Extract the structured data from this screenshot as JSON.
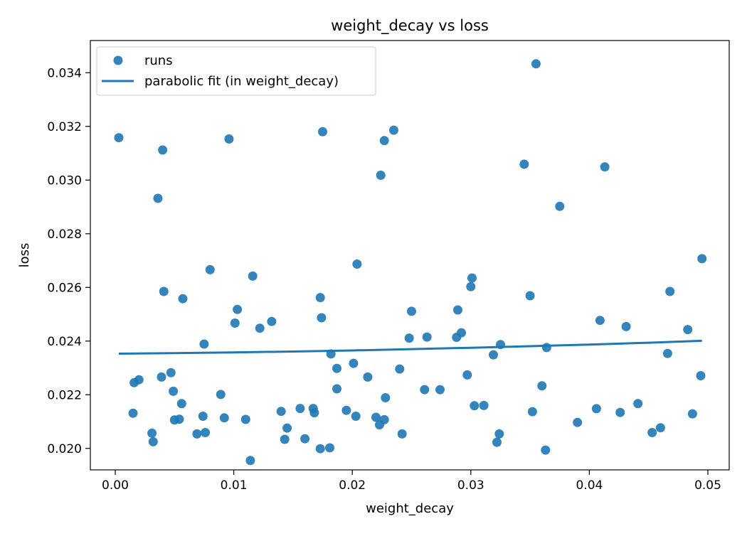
{
  "chart_data": {
    "type": "scatter",
    "title": "weight_decay vs loss",
    "xlabel": "weight_decay",
    "ylabel": "loss",
    "xlim": [
      -0.0021,
      0.0518
    ],
    "ylim": [
      0.0192,
      0.0352
    ],
    "x_ticks": [
      0.0,
      0.01,
      0.02,
      0.03,
      0.04,
      0.05
    ],
    "x_tick_labels": [
      "0.00",
      "0.01",
      "0.02",
      "0.03",
      "0.04",
      "0.05"
    ],
    "y_ticks": [
      0.02,
      0.022,
      0.024,
      0.026,
      0.028,
      0.03,
      0.032,
      0.034
    ],
    "y_tick_labels": [
      "0.020",
      "0.022",
      "0.024",
      "0.026",
      "0.028",
      "0.030",
      "0.032",
      "0.034"
    ],
    "grid": false,
    "legend": {
      "position": "top-left",
      "entries": [
        "runs",
        "parabolic fit (in weight_decay)"
      ]
    },
    "colors": {
      "points": "#1f77b4",
      "fit": "#1f77b4"
    },
    "series": [
      {
        "name": "runs",
        "kind": "scatter",
        "points": [
          [
            0.0003,
            0.03158
          ],
          [
            0.0015,
            0.02131
          ],
          [
            0.0016,
            0.02245
          ],
          [
            0.002,
            0.02256
          ],
          [
            0.0031,
            0.02057
          ],
          [
            0.0032,
            0.02025
          ],
          [
            0.0036,
            0.02932
          ],
          [
            0.0039,
            0.02266
          ],
          [
            0.004,
            0.03112
          ],
          [
            0.0041,
            0.02585
          ],
          [
            0.0047,
            0.02282
          ],
          [
            0.0049,
            0.02213
          ],
          [
            0.005,
            0.02106
          ],
          [
            0.0054,
            0.02109
          ],
          [
            0.0056,
            0.02167
          ],
          [
            0.0057,
            0.02558
          ],
          [
            0.0069,
            0.02054
          ],
          [
            0.0074,
            0.0212
          ],
          [
            0.0075,
            0.02389
          ],
          [
            0.0076,
            0.02059
          ],
          [
            0.008,
            0.02666
          ],
          [
            0.0089,
            0.02201
          ],
          [
            0.0092,
            0.02114
          ],
          [
            0.0096,
            0.03153
          ],
          [
            0.0101,
            0.02467
          ],
          [
            0.0103,
            0.02518
          ],
          [
            0.011,
            0.02108
          ],
          [
            0.0114,
            0.01955
          ],
          [
            0.0116,
            0.02642
          ],
          [
            0.0122,
            0.02448
          ],
          [
            0.0132,
            0.02473
          ],
          [
            0.014,
            0.02138
          ],
          [
            0.0143,
            0.02034
          ],
          [
            0.0145,
            0.02076
          ],
          [
            0.0156,
            0.02149
          ],
          [
            0.016,
            0.02036
          ],
          [
            0.0167,
            0.02149
          ],
          [
            0.0168,
            0.02133
          ],
          [
            0.0173,
            0.01999
          ],
          [
            0.0173,
            0.02562
          ],
          [
            0.0174,
            0.02487
          ],
          [
            0.0175,
            0.0318
          ],
          [
            0.0181,
            0.02002
          ],
          [
            0.0182,
            0.02352
          ],
          [
            0.0187,
            0.02298
          ],
          [
            0.0187,
            0.02222
          ],
          [
            0.0195,
            0.02142
          ],
          [
            0.0201,
            0.02317
          ],
          [
            0.0203,
            0.0212
          ],
          [
            0.0204,
            0.02687
          ],
          [
            0.0213,
            0.02266
          ],
          [
            0.022,
            0.02116
          ],
          [
            0.0223,
            0.02088
          ],
          [
            0.0224,
            0.03018
          ],
          [
            0.0227,
            0.03147
          ],
          [
            0.0227,
            0.02107
          ],
          [
            0.0228,
            0.02189
          ],
          [
            0.0235,
            0.03186
          ],
          [
            0.024,
            0.02296
          ],
          [
            0.0242,
            0.02054
          ],
          [
            0.0248,
            0.02411
          ],
          [
            0.025,
            0.02511
          ],
          [
            0.0261,
            0.02219
          ],
          [
            0.0263,
            0.02415
          ],
          [
            0.0274,
            0.02219
          ],
          [
            0.0288,
            0.02414
          ],
          [
            0.0289,
            0.02516
          ],
          [
            0.0292,
            0.02431
          ],
          [
            0.0297,
            0.02274
          ],
          [
            0.03,
            0.02603
          ],
          [
            0.0301,
            0.02635
          ],
          [
            0.0303,
            0.02159
          ],
          [
            0.0311,
            0.0216
          ],
          [
            0.0319,
            0.02349
          ],
          [
            0.0322,
            0.02023
          ],
          [
            0.0324,
            0.02054
          ],
          [
            0.0325,
            0.02387
          ],
          [
            0.0345,
            0.03059
          ],
          [
            0.035,
            0.02569
          ],
          [
            0.0352,
            0.02137
          ],
          [
            0.0355,
            0.03433
          ],
          [
            0.036,
            0.02233
          ],
          [
            0.0363,
            0.01994
          ],
          [
            0.0364,
            0.02376
          ],
          [
            0.0375,
            0.02902
          ],
          [
            0.039,
            0.02097
          ],
          [
            0.0406,
            0.02148
          ],
          [
            0.0409,
            0.02477
          ],
          [
            0.0413,
            0.03049
          ],
          [
            0.0426,
            0.02134
          ],
          [
            0.0431,
            0.02454
          ],
          [
            0.0441,
            0.02167
          ],
          [
            0.0453,
            0.02059
          ],
          [
            0.046,
            0.02077
          ],
          [
            0.0466,
            0.02354
          ],
          [
            0.0468,
            0.02585
          ],
          [
            0.0483,
            0.02443
          ],
          [
            0.0487,
            0.02129
          ],
          [
            0.0494,
            0.02271
          ],
          [
            0.0495,
            0.02707
          ]
        ]
      },
      {
        "name": "parabolic fit (in weight_decay)",
        "kind": "line",
        "x": [
          0.0003,
          0.005,
          0.01,
          0.015,
          0.02,
          0.025,
          0.03,
          0.035,
          0.04,
          0.045,
          0.0495
        ],
        "y": [
          0.02353,
          0.02355,
          0.02358,
          0.02361,
          0.02365,
          0.0237,
          0.02375,
          0.02381,
          0.02387,
          0.02394,
          0.02401
        ]
      }
    ]
  }
}
